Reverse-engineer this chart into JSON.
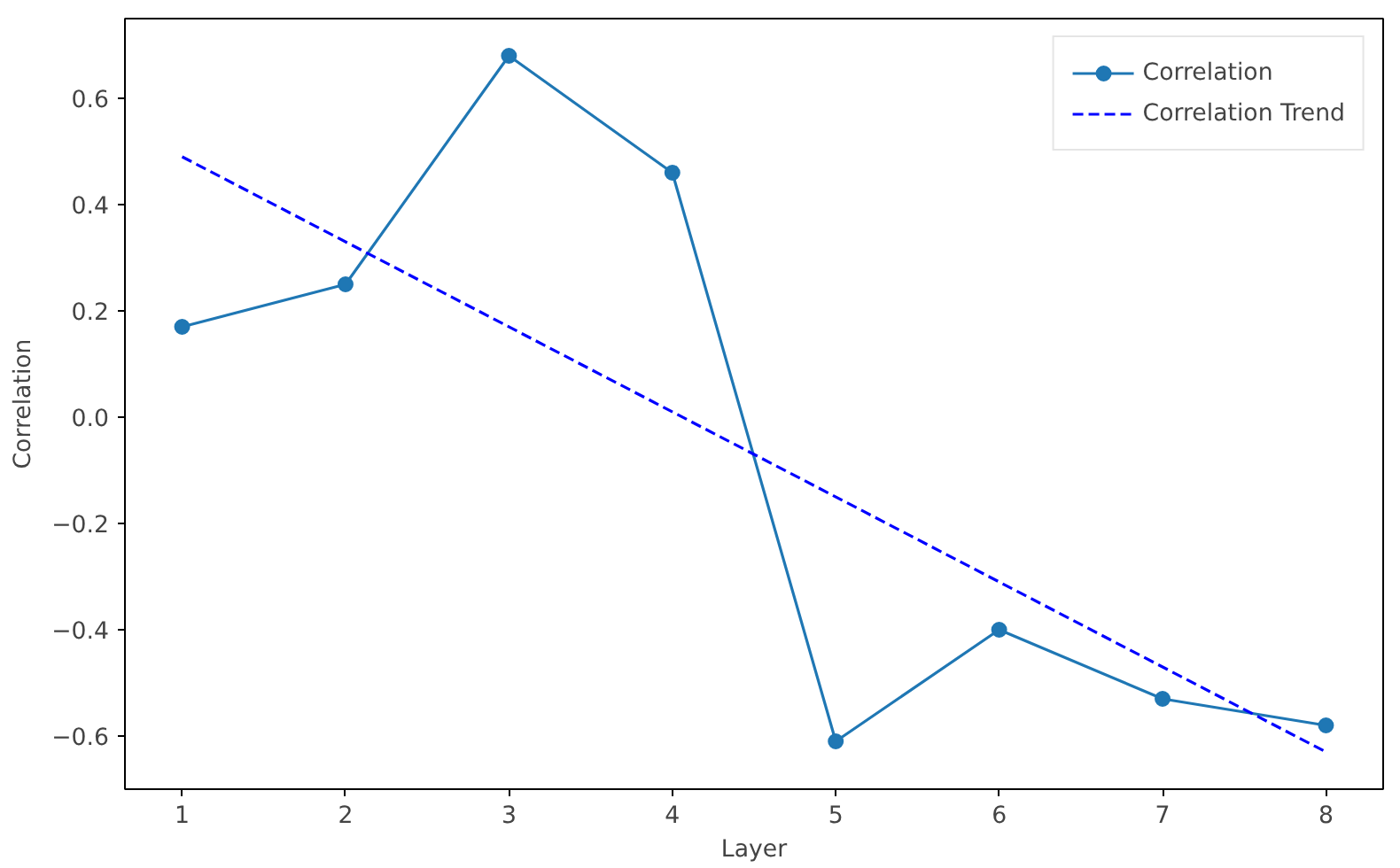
{
  "chart_data": {
    "type": "line",
    "xlabel": "Layer",
    "ylabel": "Correlation",
    "x": [
      1,
      2,
      3,
      4,
      5,
      6,
      7,
      8
    ],
    "series": [
      {
        "name": "Correlation",
        "color": "#1f77b4",
        "values": [
          0.17,
          0.25,
          0.68,
          0.46,
          -0.61,
          -0.4,
          -0.53,
          -0.58
        ],
        "marker": "circle",
        "line_style": "solid"
      },
      {
        "name": "Correlation Trend",
        "color": "#0000ff",
        "x": [
          1,
          8
        ],
        "values": [
          0.49,
          -0.63
        ],
        "marker": "none",
        "line_style": "dashed"
      }
    ],
    "xlim": [
      0.65,
      8.35
    ],
    "ylim": [
      -0.7,
      0.75
    ],
    "xticks": [
      1,
      2,
      3,
      4,
      5,
      6,
      7,
      8
    ],
    "yticks": [
      {
        "value": -0.6,
        "label": "−0.6"
      },
      {
        "value": -0.4,
        "label": "−0.4"
      },
      {
        "value": -0.2,
        "label": "−0.2"
      },
      {
        "value": 0,
        "label": "0.0"
      },
      {
        "value": 0.2,
        "label": "0.2"
      },
      {
        "value": 0.4,
        "label": "0.4"
      },
      {
        "value": 0.6,
        "label": "0.6"
      }
    ],
    "grid": false,
    "legend": "top right"
  }
}
